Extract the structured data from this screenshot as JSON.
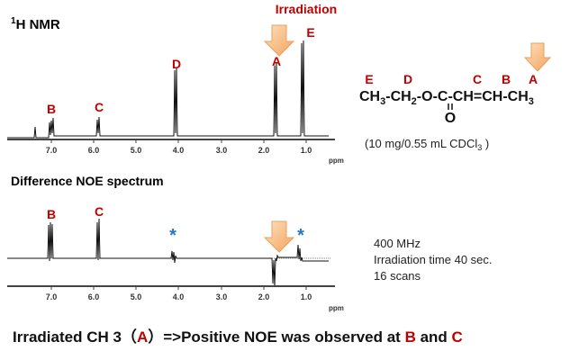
{
  "top_spectrum": {
    "title_sup": "1",
    "title": "H NMR",
    "annotation": "Irradiation",
    "peak_labels": [
      "B",
      "C",
      "D",
      "A",
      "E"
    ],
    "ticks": [
      "7.0",
      "6.0",
      "5.0",
      "4.0",
      "3.0",
      "2.0",
      "1.0"
    ],
    "unit": "ppm"
  },
  "molecule": {
    "letters": [
      "E",
      "D",
      "C",
      "B",
      "A"
    ],
    "formula": [
      "CH",
      "3",
      "-CH",
      "2",
      "-O-C-CH=CH-CH",
      "3"
    ],
    "carbonyl_o": "O",
    "conditions": [
      "(10 mg/0.55 mL CDCl",
      "3",
      " )"
    ]
  },
  "difference_spectrum": {
    "title": "Difference NOE spectrum",
    "peak_labels": [
      "B",
      "C"
    ],
    "stars": [
      "*",
      "*"
    ],
    "ticks": [
      "7.0",
      "6.0",
      "5.0",
      "4.0",
      "3.0",
      "2.0",
      "1.0"
    ],
    "unit": "ppm",
    "info": [
      "400 MHz",
      "Irradiation time 40 sec.",
      "16 scans"
    ]
  },
  "footer": [
    "Irradiated CH 3（",
    "A",
    "）=>Positive NOE was observed at ",
    "B",
    " and ",
    "C"
  ]
}
